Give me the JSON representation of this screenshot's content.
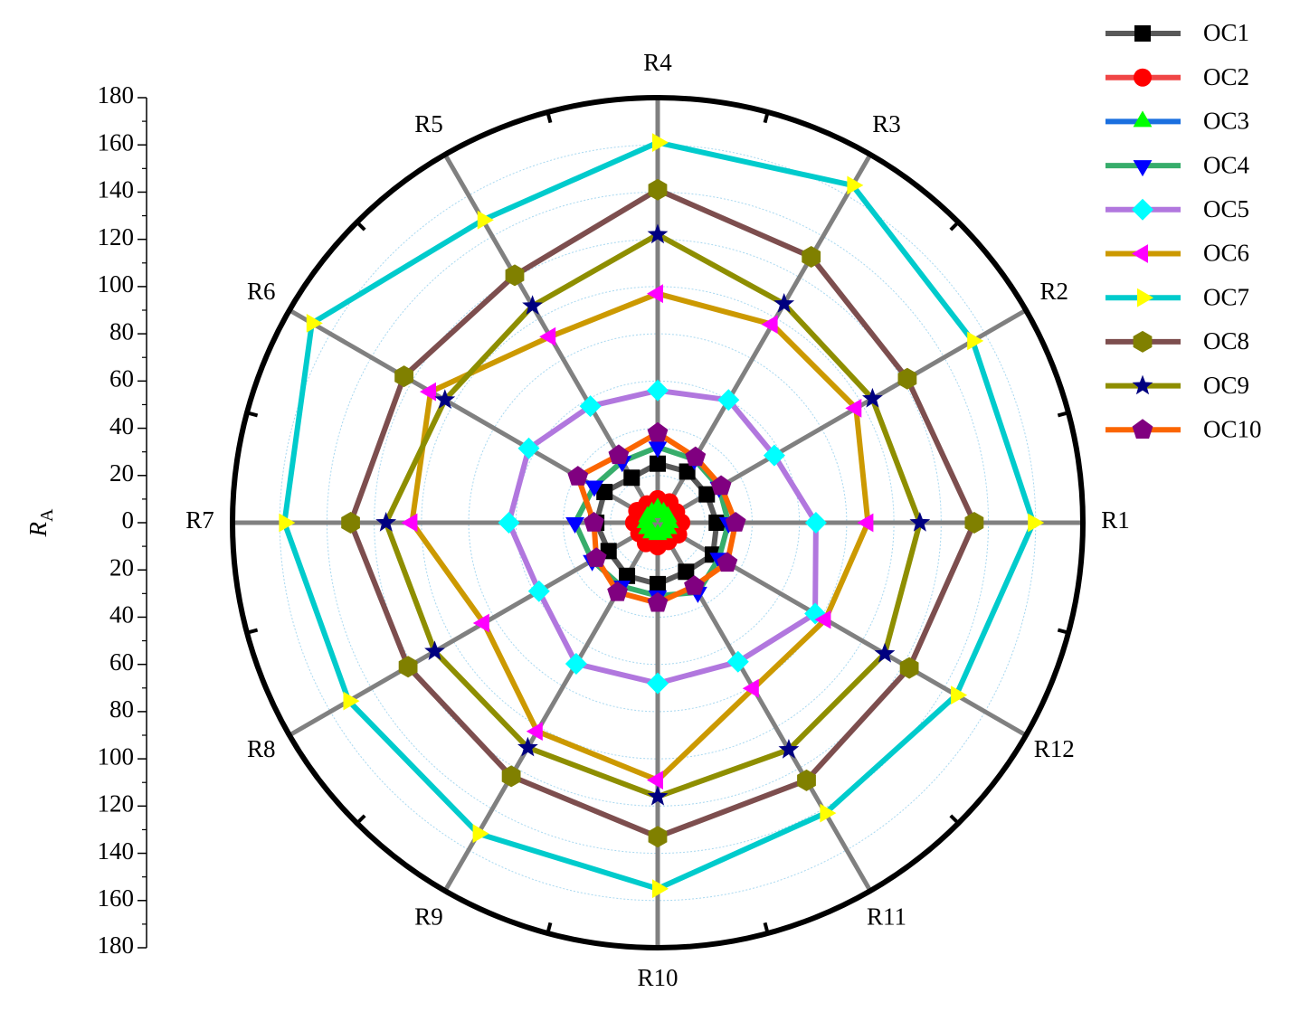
{
  "chart_data": {
    "type": "radar",
    "ylabel": {
      "text": "R",
      "subscript": "A"
    },
    "categories": [
      "R1",
      "R2",
      "R3",
      "R4",
      "R5",
      "R6",
      "R7",
      "R8",
      "R9",
      "R10",
      "R11",
      "R12"
    ],
    "rlim": [
      0,
      180
    ],
    "rticks": [
      0,
      20,
      40,
      60,
      80,
      100,
      120,
      140,
      160,
      180
    ],
    "grid": true,
    "legend": "top-right",
    "series": [
      {
        "name": "OC1",
        "color": "#595959",
        "marker": "square",
        "marker_color": "#000000",
        "values": [
          25,
          24,
          25,
          25,
          22,
          26,
          26,
          24,
          26,
          26,
          24,
          27
        ]
      },
      {
        "name": "OC2",
        "color": "#f04646",
        "marker": "circle",
        "marker_color": "#ff0000",
        "values": [
          10,
          9,
          10,
          10,
          9,
          10,
          10,
          9,
          10,
          10,
          9,
          10
        ]
      },
      {
        "name": "OC3",
        "color": "#1a6fdf",
        "marker": "triangle-up",
        "marker_color": "#00ff00",
        "values": [
          5,
          5,
          5,
          6,
          5,
          5,
          5,
          5,
          5,
          5,
          5,
          5
        ]
      },
      {
        "name": "OC4",
        "color": "#37ad6b",
        "marker": "triangle-down",
        "marker_color": "#0000ff",
        "values": [
          30,
          30,
          31,
          32,
          30,
          31,
          35,
          32,
          31,
          31,
          34,
          30
        ]
      },
      {
        "name": "OC5",
        "color": "#b177de",
        "marker": "diamond",
        "marker_color": "#00ffff",
        "values": [
          67,
          57,
          60,
          56,
          57,
          63,
          63,
          58,
          69,
          68,
          68,
          77
        ]
      },
      {
        "name": "OC6",
        "color": "#cc9900",
        "marker": "triangle-left",
        "marker_color": "#ff00ff",
        "values": [
          89,
          97,
          97,
          97,
          91,
          111,
          104,
          85,
          102,
          109,
          81,
          82
        ]
      },
      {
        "name": "OC7",
        "color": "#00cbcc",
        "marker": "triangle-right",
        "marker_color": "#ffff00",
        "values": [
          159,
          154,
          165,
          161,
          148,
          169,
          158,
          151,
          152,
          155,
          142,
          146
        ]
      },
      {
        "name": "OC8",
        "color": "#7d4e4e",
        "marker": "hexagon",
        "marker_color": "#808000",
        "values": [
          134,
          122,
          130,
          141,
          121,
          124,
          130,
          122,
          124,
          133,
          126,
          123
        ]
      },
      {
        "name": "OC9",
        "color": "#8e8e00",
        "marker": "star",
        "marker_color": "#000080",
        "values": [
          111,
          105,
          107,
          122,
          106,
          104,
          115,
          109,
          110,
          116,
          111,
          111
        ]
      },
      {
        "name": "OC10",
        "color": "#fb6501",
        "marker": "pentagon",
        "marker_color": "#800080",
        "values": [
          33,
          31,
          32,
          38,
          33,
          39,
          27,
          30,
          34,
          34,
          31,
          34
        ]
      }
    ]
  }
}
